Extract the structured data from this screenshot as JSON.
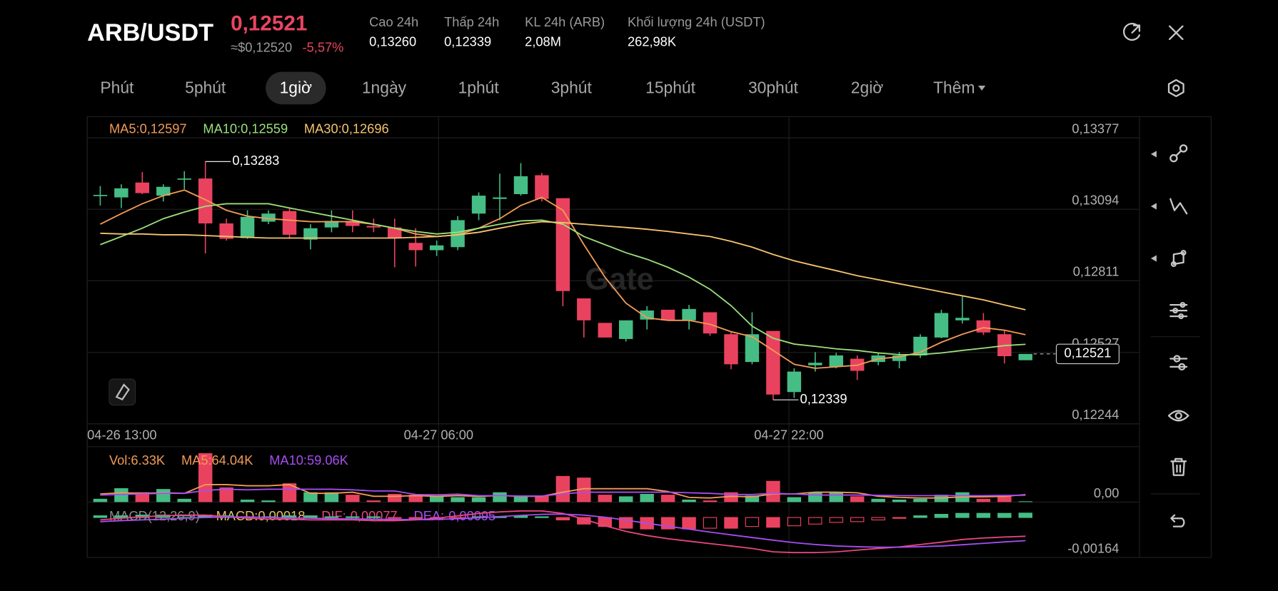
{
  "header": {
    "pair": "ARB/USDT",
    "price": "0,12521",
    "usd_price": "≈$0,12520",
    "change": "-5,57%",
    "stats": [
      {
        "label": "Cao 24h",
        "value": "0,13260"
      },
      {
        "label": "Thấp 24h",
        "value": "0,12339"
      },
      {
        "label": "KL 24h (ARB)",
        "value": "2,08M"
      },
      {
        "label": "Khối lượng 24h (USDT)",
        "value": "262,98K"
      }
    ]
  },
  "tabs": {
    "items": [
      "Phút",
      "5phút",
      "1giờ",
      "1ngày",
      "1phút",
      "3phút",
      "15phút",
      "30phút",
      "2giờ",
      "Thêm"
    ],
    "active": 2
  },
  "chart_data": [
    {
      "type": "candlestick",
      "up_color": "#45bd85",
      "down_color": "#e9425f",
      "grid": true,
      "watermark": "Gate",
      "xlim": [
        -0.62,
        49.42
      ],
      "xticks": [
        {
          "value": -0.62,
          "label": "04-26 13:00"
        },
        {
          "value": 16.09,
          "label": "04-27 06:00"
        },
        {
          "value": 32.75,
          "label": "04-27 22:00"
        }
      ],
      "ylim": [
        0.12244,
        0.13461
      ],
      "yticks": [
        {
          "value": 0.12244,
          "label": "0,12244"
        },
        {
          "value": 0.12527,
          "label": "0,12527"
        },
        {
          "value": 0.12811,
          "label": "0,12811"
        },
        {
          "value": 0.13094,
          "label": "0,13094"
        },
        {
          "value": 0.13377,
          "label": "0,13377"
        }
      ],
      "open": [
        0.13148,
        0.13141,
        0.132,
        0.13148,
        0.13213,
        0.13216,
        0.13038,
        0.1298,
        0.13045,
        0.13087,
        0.12974,
        0.13022,
        0.13048,
        0.13028,
        0.13022,
        0.12961,
        0.12932,
        0.12944,
        0.13077,
        0.13135,
        0.13154,
        0.13229,
        0.13138,
        0.12741,
        0.12644,
        0.1258,
        0.12657,
        0.12696,
        0.12654,
        0.12686,
        0.12599,
        0.12489,
        0.12612,
        0.1237,
        0.12476,
        0.1247,
        0.12502,
        0.12489,
        0.12493,
        0.12515,
        0.12586,
        0.12654,
        0.12654,
        0.12599,
        0.12496
      ],
      "high": [
        0.13186,
        0.13193,
        0.13242,
        0.13193,
        0.13245,
        0.13283,
        0.13057,
        0.1309,
        0.1309,
        0.13099,
        0.13035,
        0.1309,
        0.1309,
        0.13057,
        0.13057,
        0.13019,
        0.1297,
        0.13067,
        0.13161,
        0.13235,
        0.13277,
        0.13238,
        0.13138,
        0.12741,
        0.12644,
        0.12654,
        0.1271,
        0.12696,
        0.12715,
        0.12686,
        0.12606,
        0.12686,
        0.12612,
        0.12464,
        0.12528,
        0.12525,
        0.12515,
        0.12525,
        0.12528,
        0.12599,
        0.12696,
        0.12748,
        0.12683,
        0.12615,
        0.12521
      ],
      "low": [
        0.13109,
        0.13099,
        0.13154,
        0.13125,
        0.13174,
        0.12919,
        0.1297,
        0.12977,
        0.13035,
        0.12977,
        0.12935,
        0.13003,
        0.13003,
        0.13003,
        0.12864,
        0.12867,
        0.12909,
        0.12932,
        0.13051,
        0.13051,
        0.13148,
        0.13125,
        0.1271,
        0.12586,
        0.12586,
        0.1257,
        0.12618,
        0.12654,
        0.12618,
        0.12593,
        0.1246,
        0.1248,
        0.12339,
        0.12347,
        0.12451,
        0.12464,
        0.12418,
        0.12476,
        0.12464,
        0.12505,
        0.12583,
        0.12641,
        0.12596,
        0.12483,
        0.12496
      ],
      "close": [
        0.13151,
        0.13177,
        0.13158,
        0.13183,
        0.13216,
        0.13038,
        0.12977,
        0.13064,
        0.13077,
        0.12993,
        0.13019,
        0.13048,
        0.13028,
        0.13022,
        0.1298,
        0.12932,
        0.12951,
        0.13051,
        0.13148,
        0.13141,
        0.13225,
        0.13135,
        0.1277,
        0.12654,
        0.12586,
        0.12654,
        0.12693,
        0.12654,
        0.12699,
        0.12602,
        0.1248,
        0.12599,
        0.1236,
        0.12451,
        0.12486,
        0.12515,
        0.12454,
        0.12515,
        0.12515,
        0.12589,
        0.12683,
        0.12664,
        0.12606,
        0.12512,
        0.12521
      ],
      "high_marker": {
        "index": 5,
        "value": 0.13283,
        "label": "0,13283"
      },
      "low_marker": {
        "index": 32,
        "value": 0.12339,
        "label": "0,12339"
      },
      "last_price": {
        "value": 0.12521,
        "label": "0,12521"
      },
      "series": [
        {
          "name": "MA5:0,12597",
          "color": "#f29a55",
          "values": [
            0.13035,
            0.13077,
            0.13116,
            0.13148,
            0.1317,
            0.13132,
            0.1309,
            0.13067,
            0.13057,
            0.13051,
            0.13045,
            0.13045,
            0.13045,
            0.13035,
            0.13019,
            0.12996,
            0.12986,
            0.12993,
            0.13019,
            0.13057,
            0.13109,
            0.13141,
            0.1309,
            0.12954,
            0.12825,
            0.12722,
            0.12664,
            0.12654,
            0.12654,
            0.12638,
            0.12609,
            0.12589,
            0.12535,
            0.1248,
            0.12464,
            0.1247,
            0.12476,
            0.12502,
            0.12509,
            0.12528,
            0.12567,
            0.12599,
            0.12625,
            0.12615,
            0.12597
          ]
        },
        {
          "name": "MA10:0,12559",
          "color": "#9be07a",
          "values": [
            0.12954,
            0.12986,
            0.13019,
            0.13057,
            0.13083,
            0.13106,
            0.13116,
            0.13116,
            0.13116,
            0.13099,
            0.13083,
            0.13067,
            0.13051,
            0.13035,
            0.13019,
            0.13006,
            0.12996,
            0.13003,
            0.13019,
            0.13035,
            0.13048,
            0.13051,
            0.13035,
            0.12986,
            0.12954,
            0.12922,
            0.12896,
            0.12864,
            0.12825,
            0.12777,
            0.12712,
            0.12631,
            0.12583,
            0.1256,
            0.12551,
            0.12541,
            0.12535,
            0.12525,
            0.12518,
            0.12518,
            0.12525,
            0.12535,
            0.12544,
            0.12554,
            0.12559
          ]
        },
        {
          "name": "MA30:0,12696",
          "color": "#f5c46e",
          "values": [
            0.12999,
            0.12996,
            0.12996,
            0.12993,
            0.12993,
            0.1299,
            0.12986,
            0.12983,
            0.1298,
            0.1298,
            0.1298,
            0.1298,
            0.1298,
            0.1298,
            0.1298,
            0.12983,
            0.12986,
            0.12993,
            0.13003,
            0.13019,
            0.13035,
            0.13045,
            0.13041,
            0.13035,
            0.13028,
            0.13022,
            0.13015,
            0.13006,
            0.12996,
            0.12986,
            0.12967,
            0.12944,
            0.12915,
            0.1289,
            0.1287,
            0.12851,
            0.12831,
            0.12815,
            0.12799,
            0.12783,
            0.12767,
            0.12751,
            0.12735,
            0.12715,
            0.12696
          ]
        }
      ]
    },
    {
      "type": "bar",
      "name": "Vol:6.33K",
      "color": "#f29a55",
      "ylim": [
        0,
        476000
      ],
      "yticks": [
        {
          "value": 0,
          "label": "0,00"
        }
      ],
      "values": [
        28000,
        119000,
        84000,
        112000,
        28000,
        420000,
        126000,
        21000,
        14000,
        161000,
        84000,
        84000,
        63000,
        14000,
        70000,
        63000,
        49000,
        42000,
        42000,
        84000,
        56000,
        56000,
        224000,
        210000,
        63000,
        49000,
        70000,
        63000,
        21000,
        14000,
        84000,
        56000,
        182000,
        42000,
        84000,
        84000,
        49000,
        28000,
        21000,
        28000,
        63000,
        84000,
        28000,
        56000,
        6330
      ],
      "series": [
        {
          "name": "MA5:64.04K",
          "color": "#f29a55",
          "values": [
            70000,
            80000,
            75000,
            80000,
            75000,
            150000,
            150000,
            140000,
            140000,
            150000,
            75000,
            75000,
            85000,
            50000,
            50000,
            55000,
            50000,
            55000,
            50000,
            55000,
            50000,
            50000,
            85000,
            115000,
            115000,
            115000,
            115000,
            90000,
            40000,
            35000,
            50000,
            45000,
            70000,
            70000,
            85000,
            85000,
            80000,
            50000,
            40000,
            35000,
            35000,
            45000,
            45000,
            50000,
            64040
          ]
        },
        {
          "name": "MA10:59.06K",
          "color": "#a64df0",
          "values": [
            60000,
            65000,
            70000,
            75000,
            75000,
            100000,
            110000,
            105000,
            110000,
            110000,
            110000,
            110000,
            105000,
            95000,
            95000,
            65000,
            62000,
            68000,
            55000,
            55000,
            52000,
            52000,
            70000,
            85000,
            85000,
            85000,
            85000,
            85000,
            80000,
            75000,
            65000,
            65000,
            75000,
            70000,
            60000,
            60000,
            60000,
            58000,
            55000,
            55000,
            55000,
            55000,
            55000,
            57000,
            59060
          ]
        }
      ]
    },
    {
      "type": "macd",
      "title": "MACD(12,26,9)",
      "ylim": [
        -0.00164,
        0.0006
      ],
      "yticks": [
        {
          "value": -0.00164,
          "label": "-0,00164"
        }
      ],
      "histogram": {
        "name": "MACD:0,00018",
        "color": "#e8c15a",
        "values": [
          7e-05,
          7e-05,
          0.0001,
          0.0001,
          7e-05,
          0.0001,
          7e-05,
          3e-05,
          3e-05,
          7e-05,
          7e-05,
          3e-05,
          3e-05,
          3e-05,
          -3e-05,
          -7e-05,
          -7e-05,
          -3e-05,
          3e-05,
          3e-05,
          7e-05,
          3e-05,
          -0.0001,
          -0.00027,
          -0.00037,
          -0.00044,
          -0.00047,
          -0.00047,
          -0.00047,
          -0.00044,
          -0.00044,
          -0.00037,
          -0.0004,
          -0.00034,
          -0.00027,
          -0.0002,
          -0.00017,
          -0.0001,
          -3e-05,
          7e-05,
          0.00013,
          0.00017,
          0.00017,
          0.00017,
          0.00018
        ]
      },
      "series": [
        {
          "name": "DIF:-0,00077",
          "color": "#e8467f",
          "values": [
            -0.0001,
            -3e-05,
            3e-05,
            7e-05,
            0.0001,
            0.0001,
            3e-05,
            -3e-05,
            -7e-05,
            -7e-05,
            -0.0001,
            -0.0001,
            -0.0001,
            -0.00013,
            -0.00013,
            -0.0001,
            -3e-05,
            7e-05,
            0.00017,
            0.00023,
            0.00027,
            0.00027,
            0.00017,
            -7e-05,
            -0.00034,
            -0.00057,
            -0.00074,
            -0.00087,
            -0.00097,
            -0.00107,
            -0.00117,
            -0.00127,
            -0.00141,
            -0.00144,
            -0.00144,
            -0.00141,
            -0.00134,
            -0.00127,
            -0.00121,
            -0.00111,
            -0.00101,
            -0.0009,
            -0.00084,
            -0.0008,
            -0.00077
          ]
        },
        {
          "name": "DEA:-0,00095",
          "color": "#a64df0",
          "values": [
            -0.00017,
            -0.00013,
            -0.0001,
            -7e-05,
            -3e-05,
            0,
            2e-05,
            2e-05,
            0,
            -2e-05,
            -3e-05,
            -5e-05,
            -6e-05,
            -7e-05,
            -8e-05,
            -9e-05,
            -8e-05,
            -5e-05,
            -1e-05,
            4e-05,
            9e-05,
            0.00013,
            0.00014,
            0.0001,
            1e-05,
            -0.00011,
            -0.00024,
            -0.00036,
            -0.00048,
            -0.0006,
            -0.00071,
            -0.00082,
            -0.00093,
            -0.00103,
            -0.00111,
            -0.00117,
            -0.0012,
            -0.00122,
            -0.00122,
            -0.0012,
            -0.00117,
            -0.00112,
            -0.00106,
            -0.001,
            -0.00095
          ]
        }
      ]
    }
  ]
}
